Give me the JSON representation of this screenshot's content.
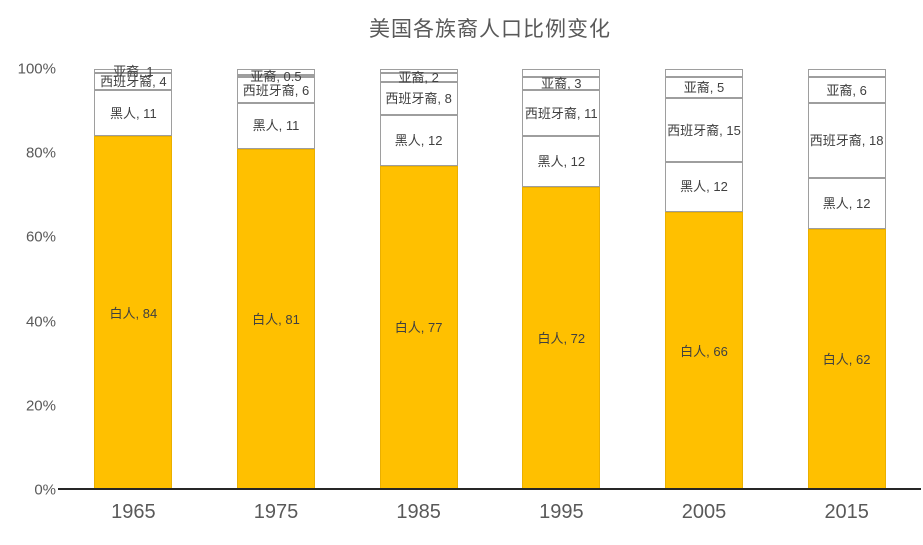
{
  "title": "美国各族裔人口比例变化",
  "chart_data": {
    "type": "bar",
    "subtype": "stacked-percent-column",
    "title": "美国各族裔人口比例变化",
    "categories": [
      "1965",
      "1975",
      "1985",
      "1995",
      "2005",
      "2015"
    ],
    "series": [
      {
        "name": "白人",
        "values": [
          84,
          81,
          77,
          72,
          66,
          62
        ],
        "color": "#FFC000",
        "labeled": true
      },
      {
        "name": "黑人",
        "values": [
          11,
          11,
          12,
          12,
          12,
          12
        ],
        "color": "#FFFFFF",
        "labeled": true
      },
      {
        "name": "西班牙裔",
        "values": [
          4,
          6,
          8,
          11,
          15,
          18
        ],
        "color": "#FFFFFF",
        "labeled": true
      },
      {
        "name": "亚裔",
        "values": [
          1,
          0.5,
          2,
          3,
          5,
          6
        ],
        "color": "#FFFFFF",
        "labeled": true
      }
    ],
    "bars_filled_to_100_with_unlabeled_remainder": true,
    "data_label_format": "{name}, {value}",
    "xlabel": "",
    "ylabel": "",
    "ylim": [
      0,
      100
    ],
    "y_ticks": [
      "0%",
      "20%",
      "40%",
      "60%",
      "80%",
      "100%"
    ],
    "grid": false,
    "legend": "none"
  },
  "colors": {
    "fill_series": "#FFC000",
    "white_series": "#FFFFFF",
    "segment_border": "#9E9E9E",
    "axis_line": "#262626",
    "title_text": "#595959",
    "tick_text": "#595959",
    "data_label_text": "#404040",
    "background": "#FFFFFF"
  }
}
